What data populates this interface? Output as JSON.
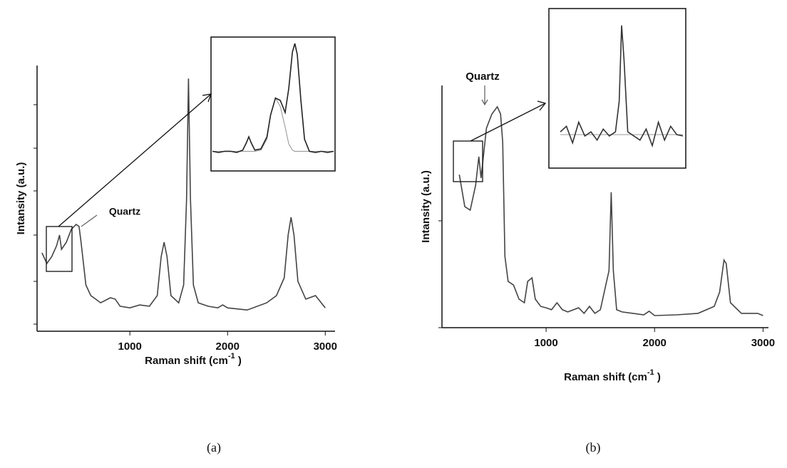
{
  "chart_data": [
    {
      "type": "line",
      "label": "(a)",
      "y_label": "Intansity (a.u.)",
      "x_label_parts": [
        "Raman shift (cm",
        "-1",
        " )"
      ],
      "annotation": "Quartz",
      "xlim": [
        50,
        3100
      ],
      "ylim": [
        0,
        100
      ],
      "xticks": [
        1000,
        2000,
        3000
      ],
      "x": [
        100,
        150,
        200,
        250,
        280,
        300,
        350,
        400,
        450,
        480,
        500,
        550,
        600,
        650,
        700,
        800,
        850,
        900,
        1000,
        1100,
        1200,
        1280,
        1320,
        1350,
        1380,
        1420,
        1500,
        1550,
        1580,
        1600,
        1620,
        1650,
        1700,
        1800,
        1900,
        1950,
        2000,
        2200,
        2400,
        2500,
        2580,
        2620,
        2650,
        2680,
        2720,
        2800,
        2900,
        3000
      ],
      "series": [
        {
          "color": "#444",
          "values": [
            29.5,
            25.5,
            28.1,
            32.2,
            36.2,
            30.8,
            33.5,
            38.3,
            40.2,
            39.4,
            33.5,
            17.4,
            13.4,
            12.1,
            10.7,
            12.6,
            12.1,
            9.4,
            8.8,
            9.9,
            9.4,
            13.4,
            28.1,
            33.5,
            28.1,
            13.4,
            10.7,
            17.4,
            49.6,
            95.1,
            49.6,
            17.4,
            10.7,
            9.4,
            8.8,
            9.9,
            8.8,
            8.0,
            10.7,
            13.4,
            20.1,
            36.2,
            42.9,
            36.2,
            18.8,
            12.1,
            13.4,
            8.8
          ]
        }
      ],
      "inset": {
        "xlim": [
          0,
          100
        ],
        "ylim": [
          0,
          100
        ],
        "x": [
          0,
          5,
          10,
          15,
          20,
          25,
          28,
          30,
          32,
          35,
          40,
          45,
          48,
          52,
          56,
          60,
          63,
          66,
          68,
          70,
          73,
          76,
          80,
          85,
          90,
          95,
          100
        ],
        "series": [
          {
            "color": "#222",
            "values": [
              8,
              7,
              8,
              8,
              7,
              9,
              15,
              20,
              15,
              9,
              10,
              20,
              38,
              52,
              50,
              40,
              60,
              90,
              97,
              88,
              50,
              18,
              8,
              7,
              8,
              7,
              8
            ]
          },
          {
            "color": "#999",
            "values": [
              8,
              8,
              8,
              8,
              8,
              8,
              8,
              8,
              8,
              8,
              9,
              18,
              38,
              52,
              45,
              28,
              14,
              9,
              8,
              8,
              8,
              8,
              8,
              8,
              8,
              8,
              8
            ]
          }
        ]
      }
    },
    {
      "type": "line",
      "label": "(b)",
      "y_label": "Intansity (a.u.)",
      "x_label_parts": [
        "Raman shift (cm",
        "-1",
        " )"
      ],
      "annotation": "Quartz",
      "xlim": [
        40,
        3050
      ],
      "ylim": [
        0,
        100
      ],
      "xticks": [
        1000,
        2000,
        3000
      ],
      "x": [
        200,
        250,
        300,
        350,
        380,
        400,
        450,
        500,
        550,
        580,
        600,
        620,
        650,
        700,
        750,
        800,
        830,
        870,
        900,
        950,
        1000,
        1050,
        1100,
        1150,
        1200,
        1300,
        1350,
        1400,
        1450,
        1500,
        1550,
        1580,
        1600,
        1620,
        1650,
        1700,
        1800,
        1900,
        1950,
        2000,
        2200,
        2400,
        2550,
        2600,
        2640,
        2660,
        2700,
        2800,
        2950,
        3000
      ],
      "series": [
        {
          "color": "#444",
          "values": [
            63.2,
            50,
            48.5,
            58.8,
            70.6,
            61.8,
            82.4,
            88.2,
            91.2,
            88.2,
            76.5,
            29.4,
            19.1,
            17.6,
            11.8,
            10.3,
            19.1,
            20.6,
            11.8,
            8.8,
            8.2,
            7.4,
            10.3,
            7.4,
            6.5,
            8.2,
            5.9,
            8.8,
            5.9,
            7.4,
            17.6,
            23.5,
            55.9,
            23.5,
            7.4,
            6.5,
            5.9,
            5.3,
            6.8,
            5,
            5.3,
            5.9,
            8.8,
            14.7,
            27.9,
            26.5,
            10.3,
            5.9,
            5.9,
            5
          ]
        }
      ],
      "inset": {
        "xlim": [
          0,
          100
        ],
        "ylim": [
          0,
          100
        ],
        "x": [
          0,
          5,
          10,
          15,
          20,
          25,
          30,
          35,
          40,
          45,
          48,
          50,
          52,
          55,
          60,
          65,
          70,
          75,
          80,
          85,
          90,
          95,
          100
        ],
        "series": [
          {
            "color": "#333",
            "values": [
              18,
              22,
              10,
              25,
              15,
              18,
              12,
              20,
              15,
              18,
              40,
              95,
              70,
              18,
              15,
              12,
              20,
              8,
              25,
              12,
              22,
              16,
              15
            ]
          },
          {
            "color": "#999",
            "values": [
              16,
              16,
              16,
              16,
              16,
              16,
              16,
              16,
              16,
              16,
              16,
              16,
              16,
              16,
              16,
              16,
              16,
              16,
              16,
              16,
              16,
              16,
              16
            ]
          }
        ]
      }
    }
  ]
}
